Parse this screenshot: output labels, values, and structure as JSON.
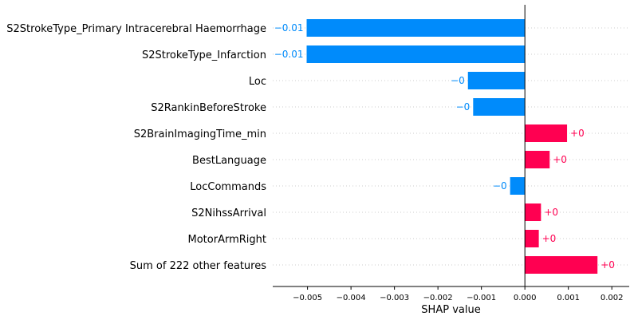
{
  "chart_data": {
    "type": "bar",
    "orientation": "horizontal",
    "xlabel": "SHAP value",
    "xlim": [
      -0.0058,
      0.0024
    ],
    "xticks": [
      -0.005,
      -0.004,
      -0.003,
      -0.002,
      -0.001,
      0.0,
      0.001,
      0.002
    ],
    "xtick_labels": [
      "−0.005",
      "−0.004",
      "−0.003",
      "−0.002",
      "−0.001",
      "0.000",
      "0.001",
      "0.002"
    ],
    "categories": [
      "S2StrokeType_Primary Intracerebral Haemorrhage",
      "S2StrokeType_Infarction",
      "Loc",
      "S2RankinBeforeStroke",
      "S2BrainImagingTime_min",
      "BestLanguage",
      "LocCommands",
      "S2NihssArrival",
      "MotorArmRight",
      "Sum of 222 other features"
    ],
    "values": [
      -0.00502,
      -0.00502,
      -0.00131,
      -0.00119,
      0.00097,
      0.00057,
      -0.00034,
      0.00037,
      0.00032,
      0.00167
    ],
    "value_labels": [
      "−0.01",
      "−0.01",
      "−0",
      "−0",
      "+0",
      "+0",
      "−0",
      "+0",
      "+0",
      "+0"
    ],
    "colors": {
      "negative": "#008bfb",
      "positive": "#ff0051"
    }
  }
}
